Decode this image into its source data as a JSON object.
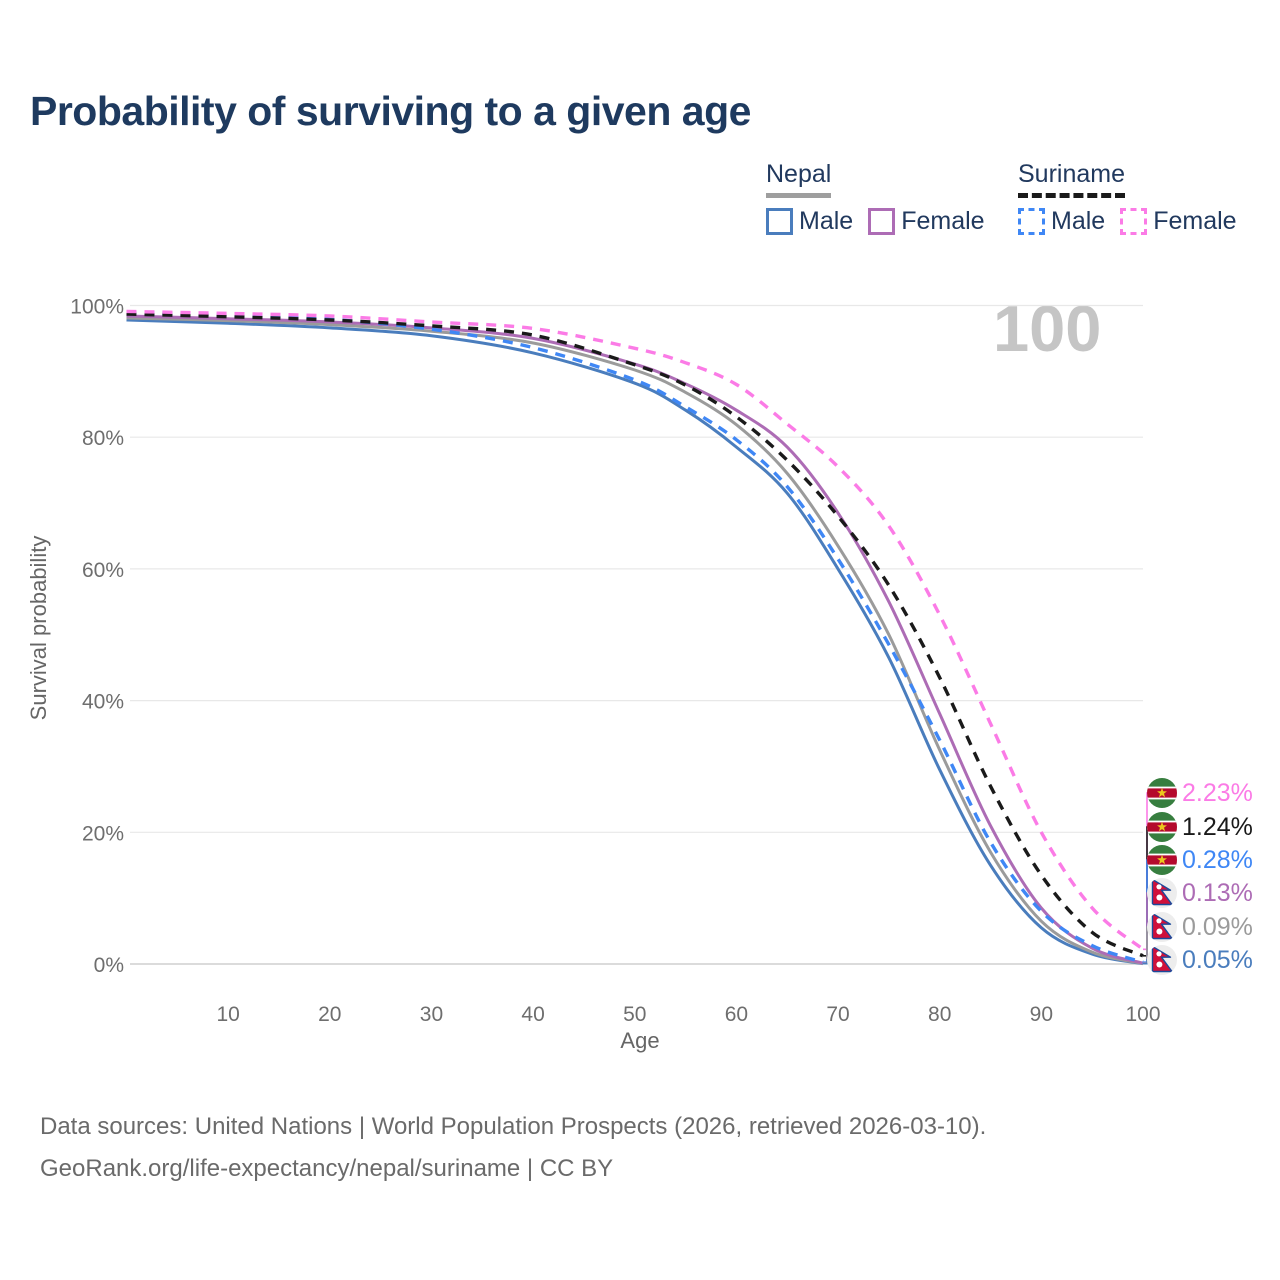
{
  "title": "Probability of surviving to a given age",
  "watermark": "100",
  "legend": {
    "groups": [
      {
        "name": "Nepal",
        "underline_style": "solid",
        "underline_color": "#9e9e9e",
        "items": [
          {
            "label": "Male",
            "color": "#4a7dbd",
            "dash": false
          },
          {
            "label": "Female",
            "color": "#ad6cb5",
            "dash": false
          }
        ]
      },
      {
        "name": "Suriname",
        "underline_style": "dashed",
        "underline_color": "#1a1a1a",
        "items": [
          {
            "label": "Male",
            "color": "#3f87f5",
            "dash": true
          },
          {
            "label": "Female",
            "color": "#fb7be6",
            "dash": true
          }
        ]
      }
    ]
  },
  "chart_data": {
    "type": "line",
    "title": "Probability of surviving to a given age",
    "xlabel": "Age",
    "ylabel": "Survival probability",
    "xlim": [
      0,
      100
    ],
    "ylim": [
      0,
      100
    ],
    "grid": "horizontal",
    "x_ticks": [
      10,
      20,
      30,
      40,
      50,
      60,
      70,
      80,
      90,
      100
    ],
    "y_ticks": [
      0,
      20,
      40,
      60,
      80,
      100
    ],
    "y_tick_suffix": "%",
    "x": [
      0,
      10,
      20,
      30,
      40,
      50,
      55,
      60,
      65,
      70,
      75,
      80,
      85,
      90,
      95,
      100
    ],
    "series": [
      {
        "name": "Suriname Female",
        "country": "Suriname",
        "sex": "Female",
        "color": "#fb7be6",
        "dash": true,
        "end_label": "2.23%",
        "flag": "suriname",
        "values": [
          99.1,
          98.8,
          98.4,
          97.5,
          96.5,
          93.5,
          91.3,
          88.0,
          82.0,
          75.5,
          66.5,
          53.0,
          36.5,
          20.0,
          8.5,
          2.23
        ]
      },
      {
        "name": "Suriname Both sexes",
        "country": "Suriname",
        "sex": "Both",
        "color": "#1a1a1a",
        "dash": true,
        "end_label": "1.24%",
        "flag": "suriname",
        "values": [
          98.7,
          98.3,
          97.8,
          96.9,
          95.5,
          91.0,
          87.9,
          83.1,
          76.5,
          68.0,
          57.5,
          43.5,
          27.0,
          13.5,
          4.8,
          1.24
        ]
      },
      {
        "name": "Suriname Male",
        "country": "Suriname",
        "sex": "Male",
        "color": "#3f87f5",
        "dash": true,
        "end_label": "0.28%",
        "flag": "suriname",
        "values": [
          98.9,
          98.5,
          97.9,
          96.4,
          93.6,
          88.7,
          84.6,
          79.6,
          72.5,
          61.5,
          48.5,
          34.0,
          18.5,
          8.0,
          2.8,
          0.28
        ]
      },
      {
        "name": "Nepal Female",
        "country": "Nepal",
        "sex": "Female",
        "color": "#ad6cb5",
        "dash": false,
        "end_label": "0.13%",
        "flag": "nepal",
        "values": [
          98.4,
          98.0,
          97.5,
          96.6,
          95.0,
          91.1,
          88.1,
          84.1,
          78.5,
          68.5,
          55.0,
          38.0,
          21.0,
          8.5,
          2.4,
          0.13
        ]
      },
      {
        "name": "Nepal Both sexes",
        "country": "Nepal",
        "sex": "Both",
        "color": "#9b9b9b",
        "dash": false,
        "end_label": "0.09%",
        "flag": "nepal",
        "values": [
          98.1,
          97.7,
          97.1,
          96.1,
          94.3,
          90.2,
          86.8,
          81.9,
          74.5,
          63.5,
          50.0,
          32.5,
          17.0,
          6.5,
          1.8,
          0.09
        ]
      },
      {
        "name": "Nepal Male",
        "country": "Nepal",
        "sex": "Male",
        "color": "#4a7dbd",
        "dash": false,
        "end_label": "0.05%",
        "flag": "nepal",
        "values": [
          97.8,
          97.3,
          96.6,
          95.4,
          92.8,
          88.2,
          84.1,
          78.5,
          71.5,
          60.0,
          46.5,
          29.5,
          15.0,
          5.5,
          1.5,
          0.05
        ]
      }
    ],
    "legend_position": "top-right",
    "watermark_text": "100"
  },
  "footer": {
    "line1": "Data sources: United Nations | World Population Prospects (2026, retrieved 2026-03-10).",
    "line2": "GeoRank.org/life-expectancy/nepal/suriname | CC BY"
  },
  "colors": {
    "title_text": "#1e3a5f",
    "axis_text": "#6e6e6e",
    "gridline": "#e8e8e8",
    "axis_line": "#cfcfcf",
    "watermark": "#c5c5c5",
    "footer_text": "#6a6a6a"
  },
  "icons": {
    "suriname_flag": "suriname-flag-icon",
    "nepal_flag": "nepal-flag-icon"
  }
}
